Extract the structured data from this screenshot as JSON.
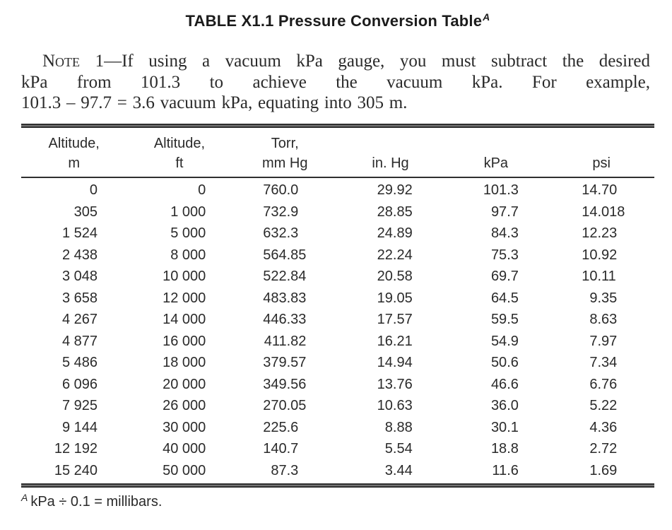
{
  "title": {
    "text": "TABLE X1.1 Pressure Conversion Table",
    "sup": "A"
  },
  "note": {
    "label": "Note",
    "line1_rest": "1—If using a vacuum kPa gauge, you must subtract the desired",
    "line2": "kPa from 101.3 to achieve the vacuum kPa. For example,",
    "line3": "101.3 – 97.7 = 3.6 vacuum kPa, equating into 305 m."
  },
  "table": {
    "columns": [
      {
        "line1": "Altitude,",
        "line2": "m"
      },
      {
        "line1": "Altitude,",
        "line2": "ft"
      },
      {
        "line1": "Torr,",
        "line2": "mm Hg"
      },
      {
        "line1": "",
        "line2": "in. Hg"
      },
      {
        "line1": "",
        "line2": "kPa"
      },
      {
        "line1": "",
        "line2": "psi"
      }
    ],
    "rows": [
      [
        "0",
        "0",
        "760.0",
        "29.92",
        "101.3",
        "14.70"
      ],
      [
        "305",
        "1 000",
        "732.9",
        "28.85",
        "97.7",
        "14.018"
      ],
      [
        "1 524",
        "5 000",
        "632.3",
        "24.89",
        "84.3",
        "12.23"
      ],
      [
        "2 438",
        "8 000",
        "564.85",
        "22.24",
        "75.3",
        "10.92"
      ],
      [
        "3 048",
        "10 000",
        "522.84",
        "20.58",
        "69.7",
        "10.11"
      ],
      [
        "3 658",
        "12 000",
        "483.83",
        "19.05",
        "64.5",
        "9.35"
      ],
      [
        "4 267",
        "14 000",
        "446.33",
        "17.57",
        "59.5",
        "8.63"
      ],
      [
        "4 877",
        "16 000",
        "411.82",
        "16.21",
        "54.9",
        "7.97"
      ],
      [
        "5 486",
        "18 000",
        "379.57",
        "14.94",
        "50.6",
        "7.34"
      ],
      [
        "6 096",
        "20 000",
        "349.56",
        "13.76",
        "46.6",
        "6.76"
      ],
      [
        "7 925",
        "26 000",
        "270.05",
        "10.63",
        "36.0",
        "5.22"
      ],
      [
        "9 144",
        "30 000",
        "225.6",
        "8.88",
        "30.1",
        "4.36"
      ],
      [
        "12 192",
        "40 000",
        "140.7",
        "5.54",
        "18.8",
        "2.72"
      ],
      [
        "15 240",
        "50 000",
        "87.3",
        "3.44",
        "11.6",
        "1.69"
      ]
    ]
  },
  "footnote": {
    "sup": "A",
    "text": "kPa ÷ 0.1 = millibars."
  }
}
